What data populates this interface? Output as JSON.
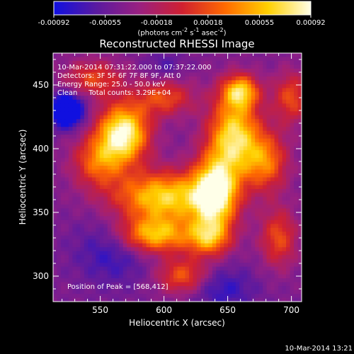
{
  "colorbar": {
    "ticks": [
      "-0.00092",
      "-0.00055",
      "-0.00018",
      "0.00018",
      "0.00055",
      "0.00092"
    ],
    "units_label": {
      "prefix": "(photons cm",
      "exp1": "-2",
      "mid1": " s",
      "exp2": "-1",
      "mid2": " asec",
      "exp3": "-2",
      "suffix": ")"
    },
    "range": [
      -0.00092,
      0.00092
    ]
  },
  "chart_data": {
    "type": "heatmap",
    "title": "Reconstructed RHESSI Image",
    "xlabel": "Heliocentric X (arcsec)",
    "ylabel": "Heliocentric Y (arcsec)",
    "xlim": [
      513,
      708
    ],
    "ylim": [
      280,
      475
    ],
    "x_ticks": [
      550,
      600,
      650,
      700
    ],
    "y_ticks": [
      300,
      350,
      400,
      450
    ],
    "annotations": [
      "10-Mar-2014 07:31:22.000 to 07:37:22.000",
      "Detectors: 3F 5F 6F 7F 8F 9F, Att 0",
      "Energy Range: 25.0 - 50.0 keV",
      "Clean     Total counts: 3.29E+04"
    ],
    "peak_text": "Position of Peak = [568,412]",
    "peak": [
      568,
      412
    ],
    "colormap": [
      "#1010e0",
      "#5a1aa0",
      "#9a2080",
      "#d02030",
      "#ff6a00",
      "#ffd000",
      "#ffffe8"
    ],
    "sources": [
      {
        "x": 568,
        "y": 412,
        "sx": 14,
        "sy": 16,
        "amp": 1.0
      },
      {
        "x": 600,
        "y": 362,
        "sx": 28,
        "sy": 14,
        "amp": 0.82
      },
      {
        "x": 640,
        "y": 365,
        "sx": 12,
        "sy": 20,
        "amp": 0.95
      },
      {
        "x": 655,
        "y": 410,
        "sx": 14,
        "sy": 22,
        "amp": 0.85
      },
      {
        "x": 660,
        "y": 445,
        "sx": 10,
        "sy": 9,
        "amp": 0.7
      },
      {
        "x": 592,
        "y": 332,
        "sx": 20,
        "sy": 10,
        "amp": 0.75
      },
      {
        "x": 615,
        "y": 300,
        "sx": 14,
        "sy": 10,
        "amp": 0.5
      },
      {
        "x": 680,
        "y": 390,
        "sx": 12,
        "sy": 16,
        "amp": 0.55
      },
      {
        "x": 600,
        "y": 440,
        "sx": 16,
        "sy": 10,
        "amp": 0.45
      },
      {
        "x": 545,
        "y": 455,
        "sx": 16,
        "sy": 10,
        "amp": 0.42
      },
      {
        "x": 548,
        "y": 390,
        "sx": 14,
        "sy": 14,
        "amp": 0.5
      },
      {
        "x": 690,
        "y": 330,
        "sx": 10,
        "sy": 16,
        "amp": 0.45
      },
      {
        "x": 635,
        "y": 330,
        "sx": 12,
        "sy": 10,
        "amp": 0.6
      },
      {
        "x": 700,
        "y": 440,
        "sx": 10,
        "sy": 14,
        "amp": 0.45
      }
    ],
    "negative_sources": [
      {
        "x": 524,
        "y": 430,
        "sx": 9,
        "sy": 9,
        "amp": 0.75
      },
      {
        "x": 560,
        "y": 320,
        "sx": 20,
        "sy": 18,
        "amp": 0.25
      },
      {
        "x": 645,
        "y": 290,
        "sx": 18,
        "sy": 12,
        "amp": 0.25
      },
      {
        "x": 600,
        "y": 465,
        "sx": 10,
        "sy": 8,
        "amp": 0.15
      }
    ]
  },
  "footer": {
    "timestamp": "10-Mar-2014 13:21"
  }
}
